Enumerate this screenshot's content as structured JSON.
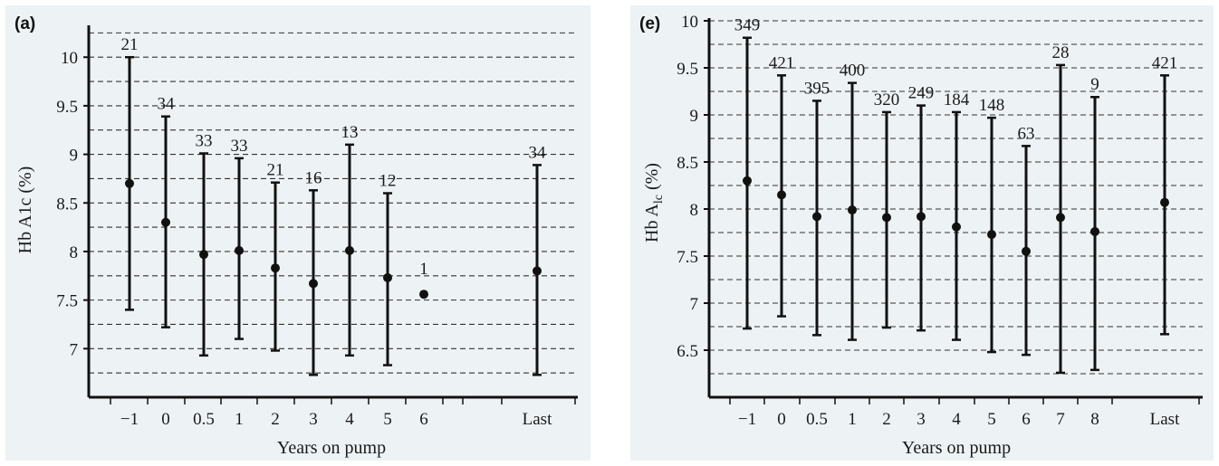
{
  "chart_data": [
    {
      "type": "errorbar",
      "panel_label": "(a)",
      "xlabel": "Years on pump",
      "ylabel": "Hb A1c (%)",
      "ylim": [
        6.5,
        10.3
      ],
      "yticks": [
        "7",
        "7.5",
        "8",
        "8.5",
        "9",
        "9.5",
        "10"
      ],
      "grid": "horizontal dashed at every 0.25",
      "categories": [
        "−1",
        "0",
        "0.5",
        "1",
        "2",
        "3",
        "4",
        "5",
        "6",
        "Last"
      ],
      "means": [
        8.7,
        8.3,
        7.97,
        8.01,
        7.83,
        7.67,
        8.01,
        7.73,
        7.56,
        7.8
      ],
      "lower": [
        7.4,
        7.22,
        6.93,
        7.1,
        6.98,
        6.73,
        6.93,
        6.83,
        null,
        6.73
      ],
      "upper": [
        10.0,
        9.39,
        9.01,
        8.96,
        8.71,
        8.63,
        9.1,
        8.6,
        null,
        8.89
      ],
      "n_labels": [
        "21",
        "34",
        "33",
        "33",
        "21",
        "16",
        "13",
        "12",
        "1",
        "34"
      ]
    },
    {
      "type": "errorbar",
      "panel_label": "(e)",
      "xlabel": "Years on pump",
      "ylabel_main": "Hb A",
      "ylabel_sub": "lc",
      "ylabel_unit": "(%)",
      "ylim": [
        6.0,
        10.0
      ],
      "yticks": [
        "6.5",
        "7",
        "7.5",
        "8",
        "8.5",
        "9",
        "9.5",
        "10"
      ],
      "grid": "horizontal dashed at every 0.25",
      "categories": [
        "−1",
        "0",
        "0.5",
        "1",
        "2",
        "3",
        "4",
        "5",
        "6",
        "7",
        "8",
        "Last"
      ],
      "means": [
        8.3,
        8.15,
        7.92,
        7.99,
        7.91,
        7.92,
        7.81,
        7.73,
        7.55,
        7.91,
        7.76,
        8.07
      ],
      "lower": [
        6.73,
        6.86,
        6.66,
        6.61,
        6.74,
        6.71,
        6.61,
        6.48,
        6.45,
        6.26,
        6.29,
        6.67
      ],
      "upper": [
        9.82,
        9.42,
        9.15,
        9.34,
        9.03,
        9.1,
        9.03,
        8.97,
        8.67,
        9.53,
        9.19,
        9.42
      ],
      "n_labels": [
        "349",
        "421",
        "395",
        "400",
        "320",
        "249",
        "184",
        "148",
        "63",
        "28",
        "9",
        "421"
      ]
    }
  ]
}
